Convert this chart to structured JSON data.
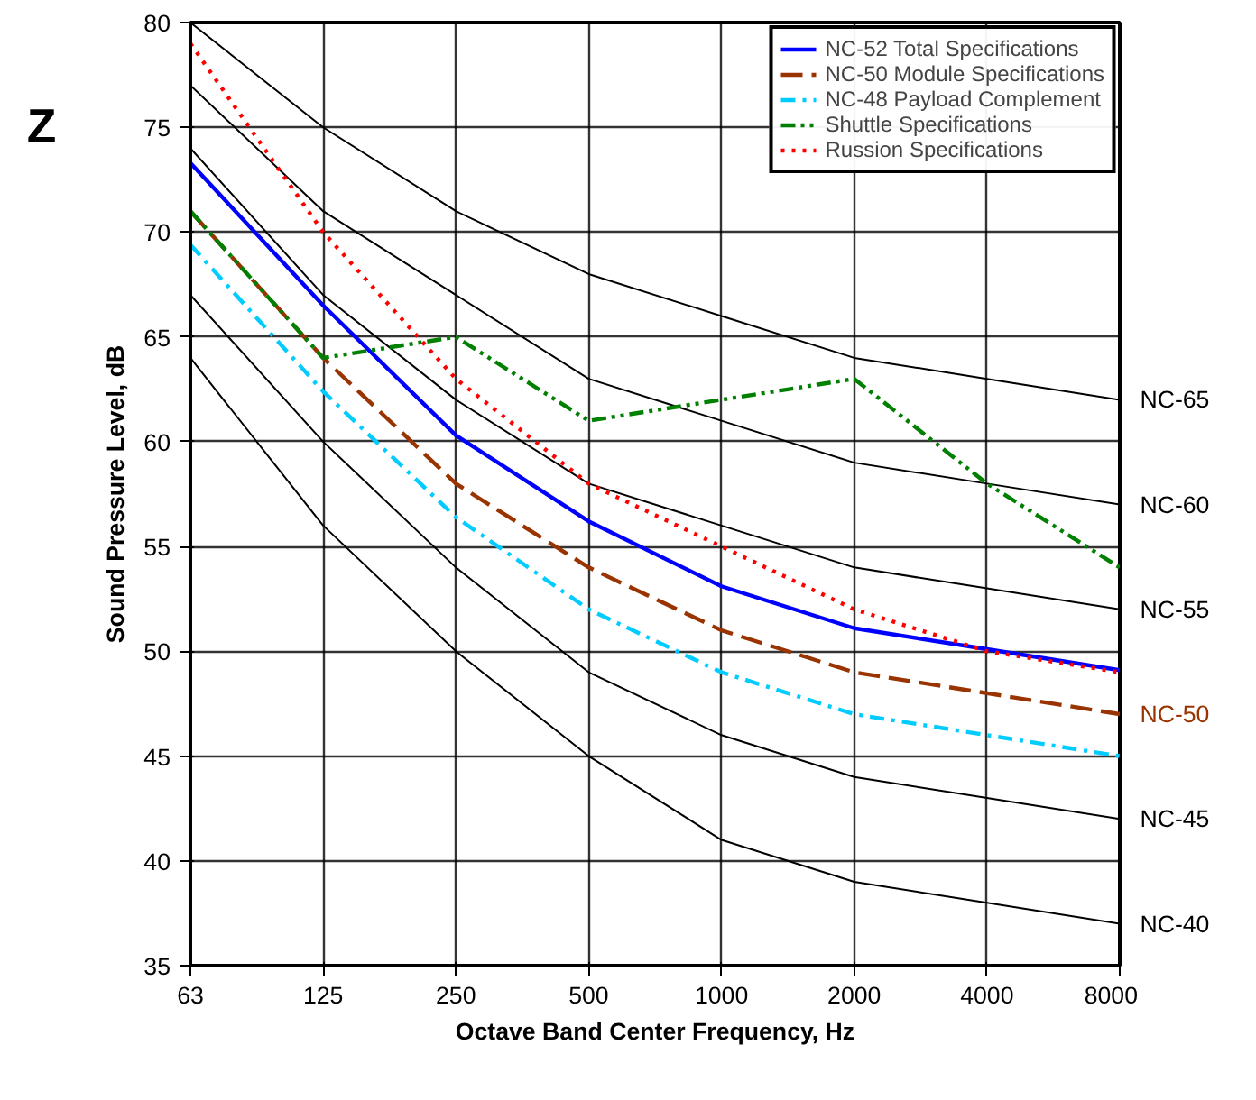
{
  "chart_data": {
    "type": "line",
    "xlabel": "Octave Band Center Frequency, Hz",
    "ylabel": "Sound Pressure Level, dB",
    "categories": [
      "63",
      "125",
      "250",
      "500",
      "1000",
      "2000",
      "4000",
      "8000"
    ],
    "ylim": [
      35,
      80
    ],
    "yticks": [
      35,
      40,
      45,
      50,
      55,
      60,
      65,
      70,
      75,
      80
    ],
    "grid": true,
    "legend": "top right",
    "series": [
      {
        "color": "#000000",
        "line_style": "solid",
        "values": [
          80,
          75,
          71,
          68,
          66,
          64,
          63,
          62
        ]
      },
      {
        "color": "#000000",
        "line_style": "solid",
        "values": [
          77,
          71,
          67,
          63,
          61,
          59,
          58,
          57
        ]
      },
      {
        "color": "#000000",
        "line_style": "solid",
        "values": [
          74,
          67,
          62,
          58,
          56,
          54,
          53,
          52
        ]
      },
      {
        "color": "#000000",
        "line_style": "solid",
        "values": [
          67,
          60,
          54,
          49,
          46,
          44,
          43,
          42
        ]
      },
      {
        "color": "#000000",
        "line_style": "solid",
        "values": [
          64,
          56,
          50,
          45,
          41,
          39,
          38,
          37
        ]
      },
      {
        "name": "NC-52 Total Specifications",
        "color": "#0000ff",
        "line_style": "solid",
        "values": [
          73.3,
          66.5,
          60.3,
          56.2,
          53.1,
          51.1,
          50.1,
          49.1
        ]
      },
      {
        "name": "NC-50 Module Specifications",
        "color": "#993300",
        "line_style": "dashed",
        "values": [
          71,
          64,
          58,
          54,
          51,
          49,
          48,
          47
        ]
      },
      {
        "name": "NC-48 Payload Complement",
        "color": "#00ccff",
        "line_style": "dashdot",
        "values": [
          69.4,
          62.4,
          56.4,
          52,
          49,
          47,
          46,
          45
        ]
      },
      {
        "name": "Shuttle Specifications",
        "color": "#008000",
        "line_style": "dashdotdot",
        "values": [
          71,
          64,
          65,
          61,
          62,
          63,
          58,
          54
        ]
      },
      {
        "name": "Russion Specifications",
        "color": "#ff0000",
        "line_style": "dotted",
        "values": [
          79,
          70,
          63,
          58,
          55,
          52,
          50,
          49
        ]
      }
    ],
    "annotations": [
      "Z",
      {
        "text": "NC-65",
        "x": "8000",
        "y": 62
      },
      {
        "text": "NC-60",
        "x": "8000",
        "y": 57
      },
      {
        "text": "NC-55",
        "x": "8000",
        "y": 52
      },
      {
        "text": "NC-50",
        "x": "8000",
        "y": 47
      },
      {
        "text": "NC-45",
        "x": "8000",
        "y": 42
      },
      {
        "text": "NC-40",
        "x": "8000",
        "y": 37
      }
    ]
  }
}
